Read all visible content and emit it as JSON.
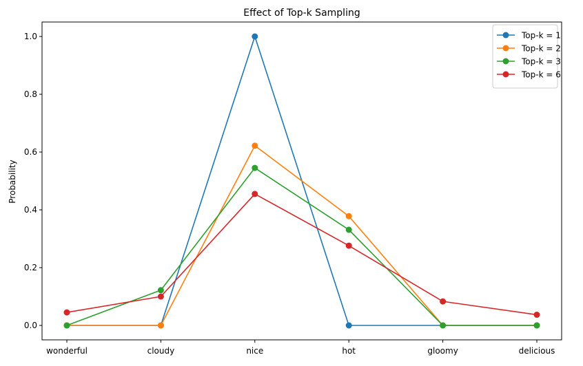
{
  "chart_data": {
    "type": "line",
    "title": "Effect of Top-k Sampling",
    "xlabel": "",
    "ylabel": "Probability",
    "categories": [
      "wonderful",
      "cloudy",
      "nice",
      "hot",
      "gloomy",
      "delicious"
    ],
    "ylim": [
      -0.05,
      1.05
    ],
    "yticks": [
      0.0,
      0.2,
      0.4,
      0.6,
      0.8,
      1.0
    ],
    "ytick_labels": [
      "0.0",
      "0.2",
      "0.4",
      "0.6",
      "0.8",
      "1.0"
    ],
    "grid": false,
    "legend_position": "top-right",
    "series": [
      {
        "name": "Top-k = 1",
        "color": "#1f77b4",
        "values": [
          0.0,
          0.0,
          1.0,
          0.0,
          0.0,
          0.0
        ]
      },
      {
        "name": "Top-k = 2",
        "color": "#ff7f0e",
        "values": [
          0.0,
          0.0,
          0.622,
          0.378,
          0.0,
          0.0
        ]
      },
      {
        "name": "Top-k = 3",
        "color": "#2ca02c",
        "values": [
          0.0,
          0.122,
          0.545,
          0.331,
          0.0,
          0.0
        ]
      },
      {
        "name": "Top-k = 6",
        "color": "#d62728",
        "values": [
          0.045,
          0.1,
          0.455,
          0.276,
          0.083,
          0.037
        ]
      }
    ]
  }
}
